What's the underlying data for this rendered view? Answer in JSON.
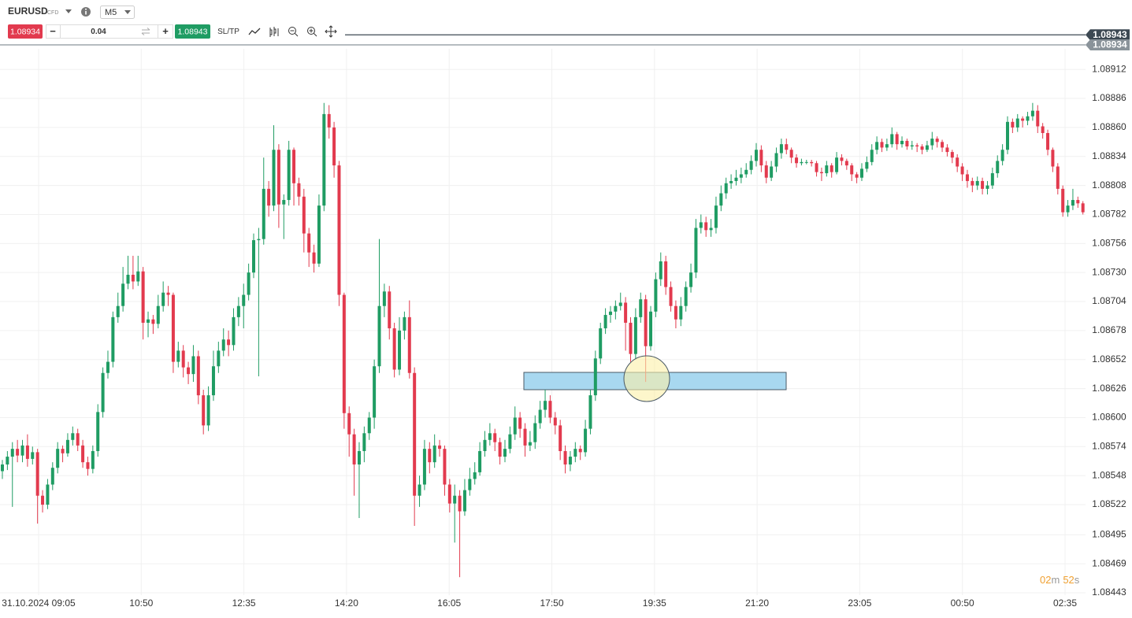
{
  "header": {
    "symbol": "EURUSD",
    "symbol_type": "CFD",
    "timeframe": "M5"
  },
  "trade_bar": {
    "sell_price": "1.08934",
    "minus": "−",
    "volume": "0.04",
    "plus": "+",
    "buy_price": "1.08943",
    "sltp": "SL/TP"
  },
  "timer": {
    "minutes": "02",
    "minutes_unit": "m",
    "seconds": "52",
    "seconds_unit": "s"
  },
  "chart_data": {
    "type": "candlestick",
    "up_color": "#1f9c63",
    "down_color": "#e23a4e",
    "grid": true,
    "ylim": [
      1.08431,
      1.08946
    ],
    "yticks": [
      1.08912,
      1.08886,
      {
        "value": 1.0886,
        "label": "1.08860"
      },
      1.08834,
      1.08808,
      1.08782,
      1.08756,
      {
        "value": 1.0873,
        "label": "1.08730"
      },
      1.08704,
      1.08678,
      1.08652,
      1.08626,
      {
        "value": 1.086,
        "label": "1.08600"
      },
      1.08574,
      1.08548,
      1.08522,
      1.08495,
      1.08469,
      1.08443
    ],
    "xticks": [
      "31.10.2024 09:05",
      "10:50",
      "12:35",
      "14:20",
      "16:05",
      "17:50",
      "19:35",
      "21:20",
      "23:05",
      "00:50",
      "02:35"
    ],
    "price_lines": [
      {
        "value": 1.08943,
        "color": "#3d4953"
      },
      {
        "value": 1.08934,
        "color": "#8a939a"
      }
    ],
    "open": [
      1.08552,
      1.08558,
      1.08565,
      1.08572,
      1.08566,
      1.08575,
      1.08563,
      1.08569,
      1.0853,
      1.08522,
      1.0854,
      1.08555,
      1.08572,
      1.08568,
      1.0858,
      1.08586,
      1.08575,
      1.0856,
      1.08554,
      1.0857,
      1.08605,
      1.0864,
      1.0865,
      1.0869,
      1.087,
      1.0872,
      1.08728,
      1.08722,
      1.08731,
      1.08685,
      1.08688,
      1.08684,
      1.087,
      1.08712,
      1.0871,
      1.0865,
      1.0866,
      1.08645,
      1.08639,
      1.08655,
      1.0862,
      1.08593,
      1.0862,
      1.08646,
      1.0866,
      1.0867,
      1.08665,
      1.0869,
      1.087,
      1.0871,
      1.0873,
      1.08759,
      1.0876,
      1.08805,
      1.0879,
      1.0884,
      1.08791,
      1.08795,
      1.0884,
      1.0881,
      1.08798,
      1.08765,
      1.08748,
      1.08738,
      1.0879,
      1.08872,
      1.0886,
      1.08826,
      1.0871,
      1.08604,
      1.08585,
      1.08558,
      1.0857,
      1.08586,
      1.086,
      1.08646,
      1.087,
      1.08713,
      1.0868,
      1.08643,
      1.08678,
      1.0869,
      1.0864,
      1.0853,
      1.0854,
      1.08572,
      1.0856,
      1.08575,
      1.08572,
      1.0854,
      1.08523,
      1.0853,
      1.08516,
      1.08535,
      1.08545,
      1.08551,
      1.0857,
      1.0858,
      1.08586,
      1.08578,
      1.08565,
      1.08572,
      1.08585,
      1.086,
      1.0859,
      1.08575,
      1.08578,
      1.08595,
      1.08607,
      1.08615,
      1.086,
      1.08593,
      1.0857,
      1.08558,
      1.08565,
      1.08572,
      1.08569,
      1.0859,
      1.0862,
      1.08653,
      1.0868,
      1.08692,
      1.08695,
      1.087,
      1.08703,
      1.08685,
      1.08657,
      1.0869,
      1.08706,
      1.08664,
      1.08695,
      1.08724,
      1.0874,
      1.08717,
      1.087,
      1.08688,
      1.087,
      1.08717,
      1.0873,
      1.0877,
      1.08775,
      1.08768,
      1.0877,
      1.0879,
      1.08801,
      1.0881,
      1.08812,
      1.08815,
      1.08818,
      1.08822,
      1.0883,
      1.0884,
      1.08826,
      1.08815,
      1.08825,
      1.08837,
      1.08845,
      1.0884,
      1.08833,
      1.08828,
      1.08829,
      1.08829,
      1.08828,
      1.0882,
      1.08819,
      1.08826,
      1.0882,
      1.08833,
      1.0883,
      1.08826,
      1.08818,
      1.08815,
      1.08823,
      1.08829,
      1.0884,
      1.08847,
      1.08842,
      1.08845,
      1.08854,
      1.08845,
      1.08848,
      1.08843,
      1.08844,
      1.08843,
      1.0884,
      1.08844,
      1.0885,
      1.08847,
      1.08842,
      1.08838,
      1.08833,
      1.08825,
      1.08818,
      1.08812,
      1.08808,
      1.08812,
      1.08805,
      1.08808,
      1.08819,
      1.0883,
      1.0884,
      1.08865,
      1.0886,
      1.08868,
      1.08866,
      1.0887,
      1.08875,
      1.08861,
      1.08855,
      1.0884,
      1.08825,
      1.08805,
      1.08784,
      1.0879,
      1.08795,
      1.08792
    ],
    "high": [
      1.08562,
      1.0857,
      1.08578,
      1.0858,
      1.0858,
      1.08585,
      1.08574,
      1.08572,
      1.08535,
      1.08545,
      1.0856,
      1.08578,
      1.08575,
      1.08586,
      1.08592,
      1.0859,
      1.0858,
      1.08565,
      1.08575,
      1.08612,
      1.08645,
      1.0866,
      1.08695,
      1.08712,
      1.08735,
      1.08745,
      1.08745,
      1.08745,
      1.08735,
      1.08695,
      1.08692,
      1.0871,
      1.08722,
      1.08718,
      1.08712,
      1.08668,
      1.08665,
      1.0865,
      1.08665,
      1.0866,
      1.08625,
      1.08628,
      1.0866,
      1.08668,
      1.0868,
      1.08678,
      1.08698,
      1.08708,
      1.0872,
      1.08738,
      1.08765,
      1.0877,
      1.08833,
      1.08812,
      1.08862,
      1.08845,
      1.088,
      1.08848,
      1.08842,
      1.08815,
      1.08805,
      1.0877,
      1.08755,
      1.088,
      1.08882,
      1.0888,
      1.08865,
      1.0883,
      1.08712,
      1.0861,
      1.0859,
      1.08578,
      1.08592,
      1.08605,
      1.08652,
      1.0876,
      1.0872,
      1.08718,
      1.08685,
      1.0869,
      1.08695,
      1.08705,
      1.08645,
      1.08548,
      1.0858,
      1.08578,
      1.08585,
      1.0858,
      1.08575,
      1.08545,
      1.0854,
      1.08535,
      1.08545,
      1.08555,
      1.0856,
      1.08578,
      1.08588,
      1.08595,
      1.0859,
      1.08582,
      1.0858,
      1.08592,
      1.0861,
      1.08605,
      1.08595,
      1.08588,
      1.08602,
      1.08615,
      1.08625,
      1.0862,
      1.08605,
      1.08598,
      1.08575,
      1.0857,
      1.08578,
      1.08575,
      1.08598,
      1.08625,
      1.0866,
      1.08685,
      1.08698,
      1.087,
      1.08705,
      1.08712,
      1.08708,
      1.0869,
      1.08698,
      1.08712,
      1.0871,
      1.087,
      1.0873,
      1.08748,
      1.08745,
      1.08722,
      1.08705,
      1.08708,
      1.08722,
      1.08738,
      1.08778,
      1.08782,
      1.0878,
      1.08778,
      1.08798,
      1.08808,
      1.08815,
      1.08818,
      1.08822,
      1.08824,
      1.08828,
      1.08835,
      1.08846,
      1.08844,
      1.0883,
      1.0883,
      1.08842,
      1.0885,
      1.0885,
      1.08842,
      1.08836,
      1.08832,
      1.08831,
      1.08831,
      1.0883,
      1.08824,
      1.0883,
      1.08828,
      1.08838,
      1.08836,
      1.08832,
      1.08828,
      1.0882,
      1.08828,
      1.08834,
      1.08845,
      1.08852,
      1.0885,
      1.0885,
      1.0886,
      1.08856,
      1.08852,
      1.0885,
      1.08848,
      1.08846,
      1.08845,
      1.08848,
      1.08856,
      1.08852,
      1.08849,
      1.08845,
      1.0884,
      1.08836,
      1.08828,
      1.08822,
      1.08815,
      1.08816,
      1.08815,
      1.08812,
      1.08824,
      1.08835,
      1.08845,
      1.0887,
      1.08868,
      1.08872,
      1.0887,
      1.08874,
      1.08882,
      1.0888,
      1.08864,
      1.08858,
      1.08842,
      1.08828,
      1.08808,
      1.08795,
      1.08805,
      1.08798,
      1.08794
    ],
    "low": [
      1.08545,
      1.08553,
      1.0852,
      1.0856,
      1.0856,
      1.08556,
      1.08558,
      1.08505,
      1.08515,
      1.08518,
      1.08535,
      1.0855,
      1.0856,
      1.08565,
      1.08575,
      1.0857,
      1.08555,
      1.08548,
      1.0855,
      1.08565,
      1.086,
      1.08635,
      1.08645,
      1.08685,
      1.08695,
      1.08715,
      1.08715,
      1.08718,
      1.0867,
      1.08672,
      1.08675,
      1.0868,
      1.08695,
      1.087,
      1.0864,
      1.08645,
      1.08636,
      1.0863,
      1.08632,
      1.08612,
      1.08585,
      1.08588,
      1.08615,
      1.0864,
      1.08655,
      1.08655,
      1.0866,
      1.08682,
      1.0868,
      1.08705,
      1.08725,
      1.08637,
      1.08755,
      1.0878,
      1.08785,
      1.0877,
      1.0876,
      1.0879,
      1.0879,
      1.0879,
      1.08748,
      1.08735,
      1.0873,
      1.08735,
      1.08785,
      1.0885,
      1.08815,
      1.087,
      1.0859,
      1.08565,
      1.0853,
      1.0851,
      1.0856,
      1.0858,
      1.0859,
      1.0864,
      1.0869,
      1.0867,
      1.08636,
      1.08638,
      1.0867,
      1.08635,
      1.08503,
      1.0852,
      1.08535,
      1.0855,
      1.08555,
      1.08565,
      1.0853,
      1.08515,
      1.08488,
      1.08457,
      1.08512,
      1.0853,
      1.0854,
      1.08548,
      1.08565,
      1.08575,
      1.0857,
      1.08558,
      1.0856,
      1.08568,
      1.0858,
      1.08582,
      1.08565,
      1.0857,
      1.08572,
      1.0859,
      1.086,
      1.08595,
      1.08585,
      1.08562,
      1.0855,
      1.08552,
      1.0856,
      1.08562,
      1.08565,
      1.08585,
      1.08615,
      1.08648,
      1.08675,
      1.08685,
      1.08688,
      1.08696,
      1.0866,
      1.0865,
      1.08652,
      1.08685,
      1.08632,
      1.0866,
      1.0869,
      1.08718,
      1.0871,
      1.08695,
      1.0868,
      1.08682,
      1.08695,
      1.08712,
      1.08725,
      1.08765,
      1.08762,
      1.08762,
      1.08765,
      1.08785,
      1.08796,
      1.08805,
      1.08808,
      1.0881,
      1.08815,
      1.08818,
      1.08825,
      1.0882,
      1.0881,
      1.08812,
      1.0882,
      1.08832,
      1.08836,
      1.08828,
      1.08824,
      1.08826,
      1.08827,
      1.08825,
      1.08816,
      1.08812,
      1.08816,
      1.08815,
      1.08818,
      1.08826,
      1.08822,
      1.08812,
      1.0881,
      1.08812,
      1.0882,
      1.08826,
      1.08836,
      1.08838,
      1.08839,
      1.08842,
      1.0884,
      1.08842,
      1.0884,
      1.0884,
      1.08838,
      1.08836,
      1.08838,
      1.0884,
      1.08842,
      1.08838,
      1.08834,
      1.08828,
      1.0882,
      1.08812,
      1.08806,
      1.08802,
      1.08804,
      1.088,
      1.088,
      1.08805,
      1.08815,
      1.08826,
      1.08836,
      1.08855,
      1.08856,
      1.0886,
      1.08862,
      1.08866,
      1.08855,
      1.0885,
      1.08835,
      1.0882,
      1.088,
      1.0878,
      1.0878,
      1.08786,
      1.08788,
      1.08782
    ],
    "close": [
      1.08558,
      1.08565,
      1.08572,
      1.08566,
      1.08575,
      1.08563,
      1.08569,
      1.0853,
      1.08522,
      1.0854,
      1.08555,
      1.08572,
      1.08568,
      1.0858,
      1.08586,
      1.08575,
      1.0856,
      1.08554,
      1.0857,
      1.08605,
      1.0864,
      1.0865,
      1.0869,
      1.087,
      1.0872,
      1.08728,
      1.08722,
      1.08731,
      1.08685,
      1.08688,
      1.08684,
      1.087,
      1.08712,
      1.0871,
      1.0865,
      1.0866,
      1.08645,
      1.08639,
      1.08655,
      1.0862,
      1.08593,
      1.0862,
      1.08646,
      1.0866,
      1.0867,
      1.08665,
      1.0869,
      1.087,
      1.0871,
      1.0873,
      1.08759,
      1.0876,
      1.08805,
      1.0879,
      1.0884,
      1.08791,
      1.08795,
      1.0884,
      1.0881,
      1.08798,
      1.08765,
      1.08748,
      1.08738,
      1.0879,
      1.08872,
      1.0886,
      1.08826,
      1.0871,
      1.08604,
      1.08585,
      1.08558,
      1.0857,
      1.08586,
      1.086,
      1.08646,
      1.087,
      1.08713,
      1.0868,
      1.08643,
      1.08678,
      1.0869,
      1.0864,
      1.0853,
      1.0854,
      1.08572,
      1.0856,
      1.08575,
      1.08572,
      1.0854,
      1.08523,
      1.0853,
      1.08516,
      1.08535,
      1.08545,
      1.08551,
      1.0857,
      1.0858,
      1.08586,
      1.08578,
      1.08565,
      1.08572,
      1.08585,
      1.086,
      1.0859,
      1.08575,
      1.08578,
      1.08595,
      1.08607,
      1.08615,
      1.086,
      1.08593,
      1.0857,
      1.08558,
      1.08565,
      1.08572,
      1.08569,
      1.0859,
      1.0862,
      1.08653,
      1.0868,
      1.08692,
      1.08695,
      1.087,
      1.08703,
      1.08685,
      1.08657,
      1.0869,
      1.08706,
      1.08664,
      1.08695,
      1.08724,
      1.0874,
      1.08717,
      1.087,
      1.08688,
      1.087,
      1.08717,
      1.0873,
      1.0877,
      1.08775,
      1.08768,
      1.0877,
      1.0879,
      1.08801,
      1.0881,
      1.08812,
      1.08815,
      1.08818,
      1.08822,
      1.0883,
      1.0884,
      1.08826,
      1.08815,
      1.08825,
      1.08837,
      1.08845,
      1.0884,
      1.08833,
      1.08828,
      1.08829,
      1.08829,
      1.08828,
      1.0882,
      1.08819,
      1.08826,
      1.0882,
      1.08833,
      1.0883,
      1.08826,
      1.08818,
      1.08815,
      1.08823,
      1.08829,
      1.0884,
      1.08847,
      1.08842,
      1.08845,
      1.08854,
      1.08845,
      1.08848,
      1.08843,
      1.08844,
      1.08843,
      1.0884,
      1.08844,
      1.0885,
      1.08847,
      1.08842,
      1.08838,
      1.08833,
      1.08825,
      1.08818,
      1.08812,
      1.08808,
      1.08812,
      1.08805,
      1.08808,
      1.08819,
      1.0883,
      1.0884,
      1.08865,
      1.0886,
      1.08868,
      1.08866,
      1.0887,
      1.08875,
      1.08861,
      1.08855,
      1.0884,
      1.08825,
      1.08805,
      1.08784,
      1.0879,
      1.08795,
      1.08792,
      1.08784
    ]
  }
}
